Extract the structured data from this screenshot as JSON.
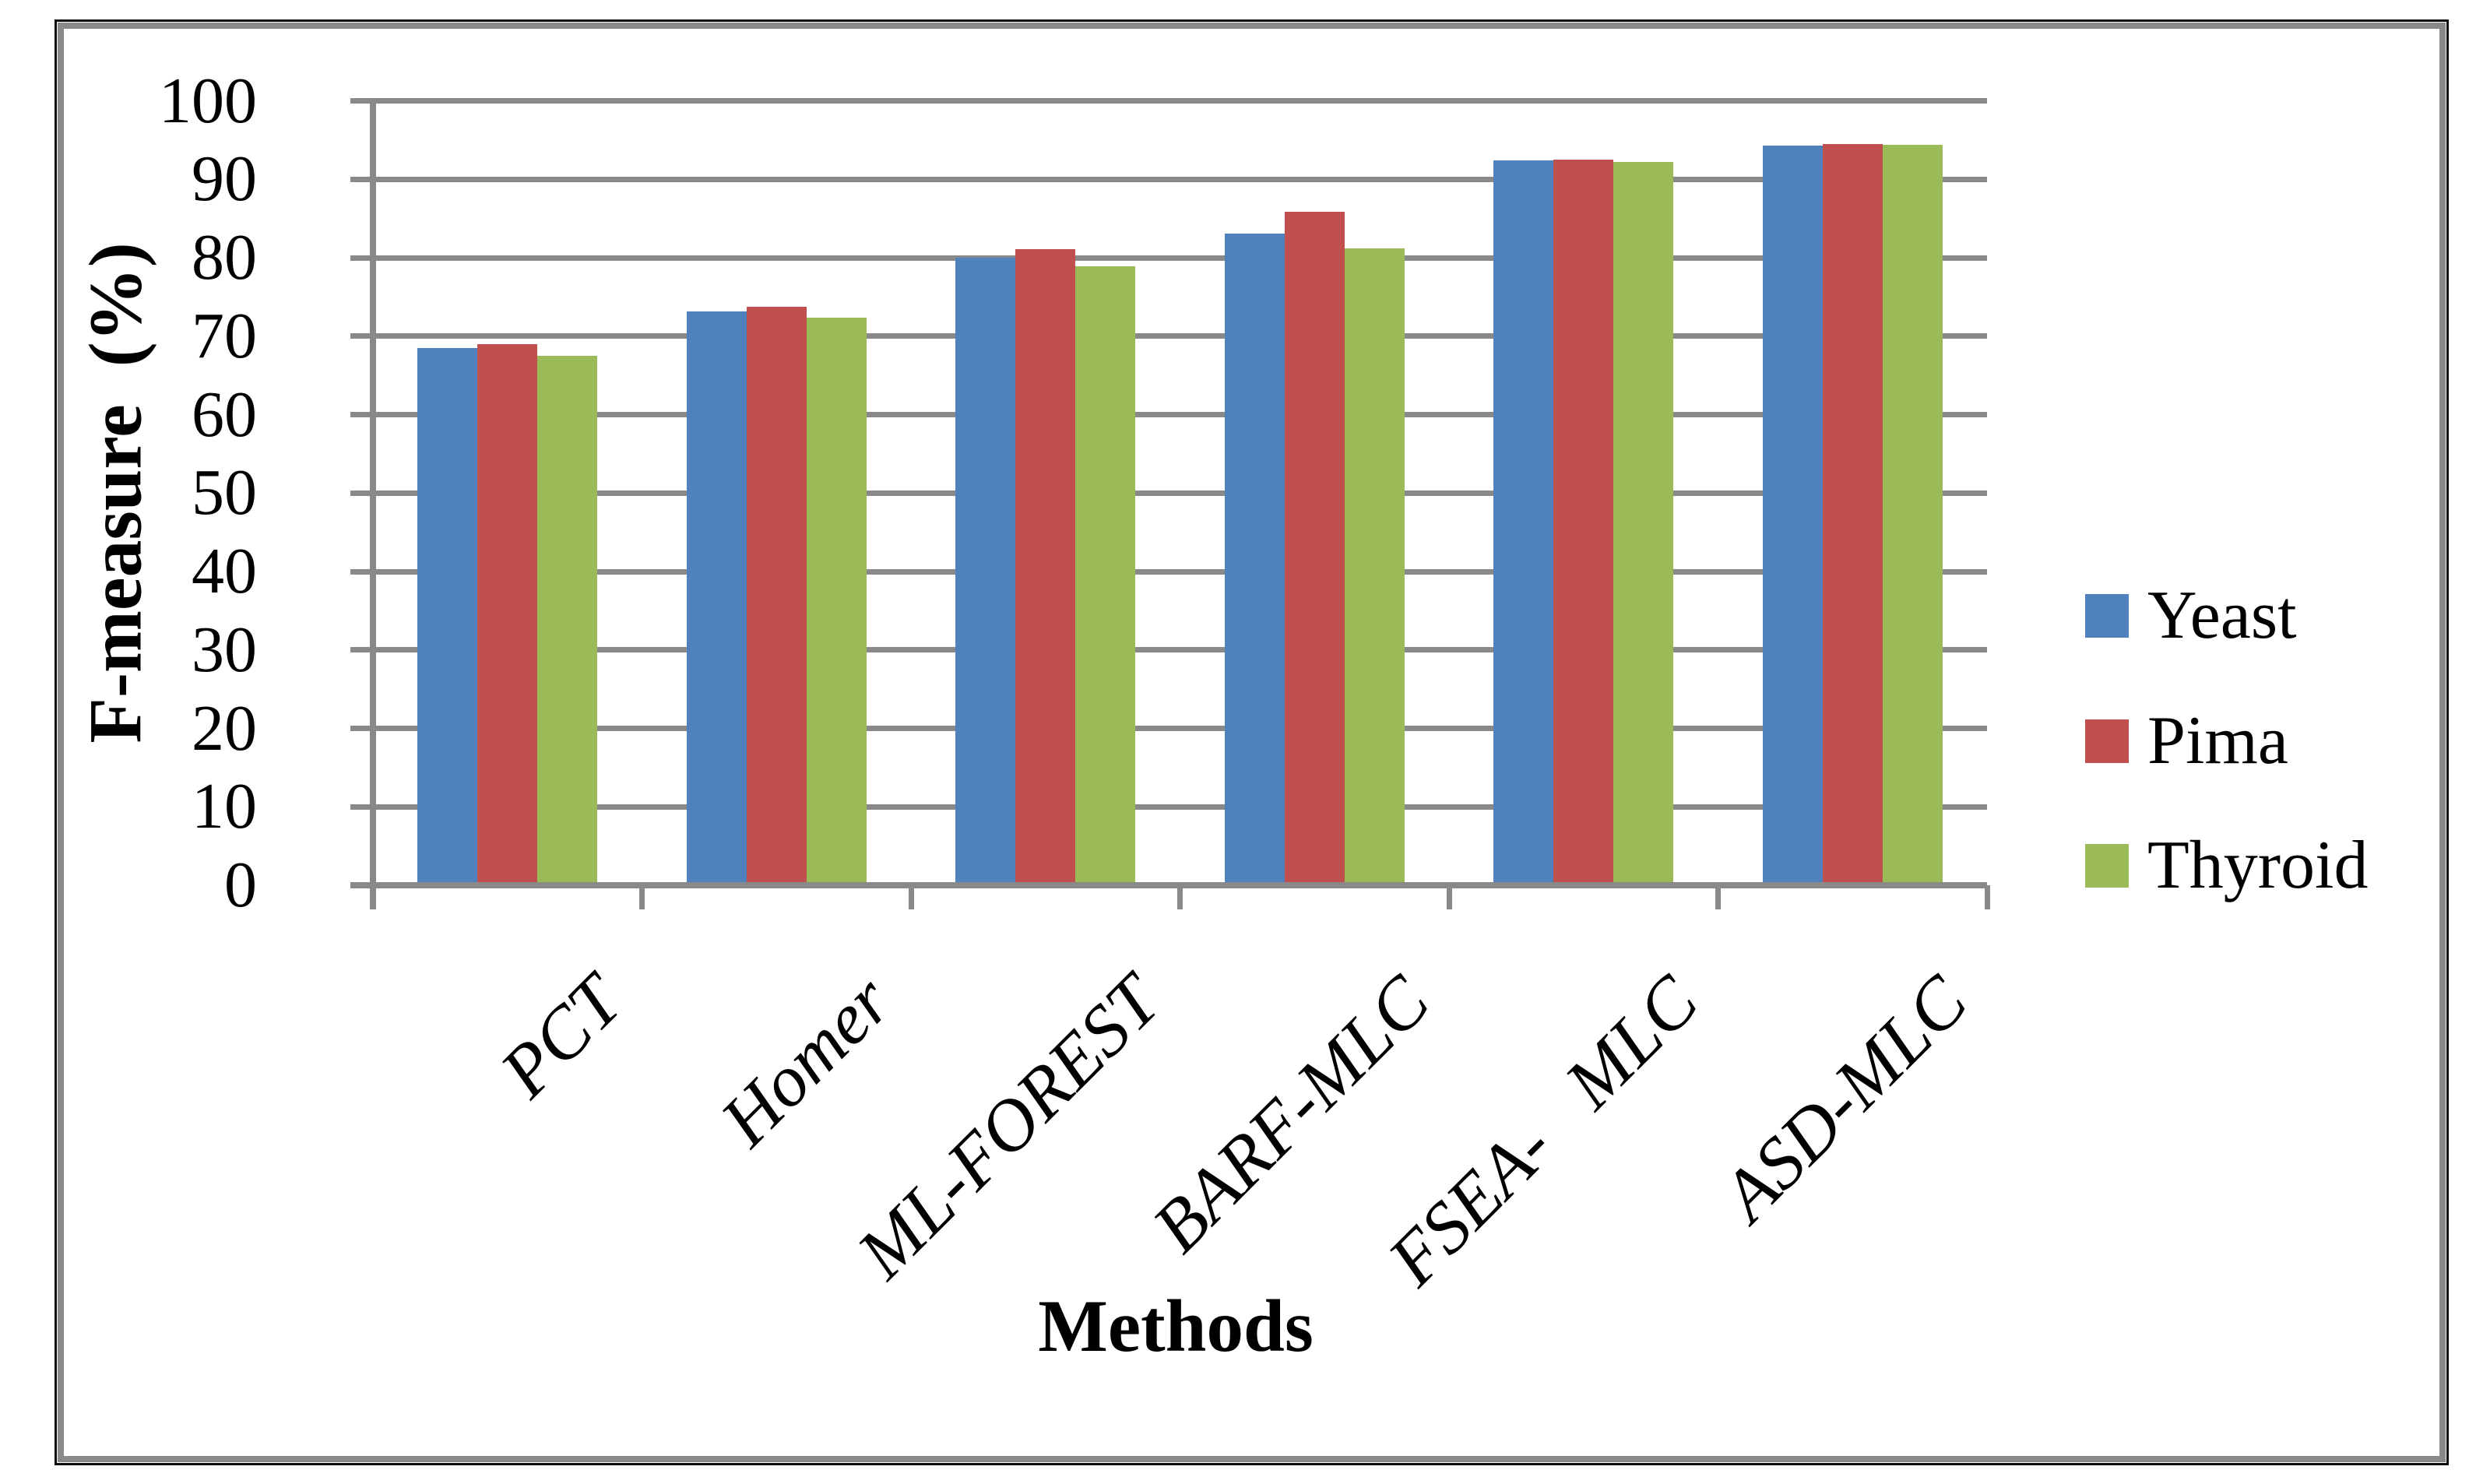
{
  "chart_data": {
    "type": "bar",
    "title": "",
    "categories": [
      "PCT",
      "Homer",
      "ML-FOREST",
      "BARF-MLC",
      "FSEA-   MLC",
      "ASD-MLC"
    ],
    "series": [
      {
        "name": "Yeast",
        "color": "#4F81BD",
        "values": [
          68.5,
          73.2,
          80.0,
          83.1,
          92.4,
          94.3
        ]
      },
      {
        "name": "Pima",
        "color": "#C0504D",
        "values": [
          69.0,
          73.7,
          81.1,
          85.9,
          92.5,
          94.5
        ]
      },
      {
        "name": "Thyroid",
        "color": "#9BBB59",
        "values": [
          67.5,
          72.4,
          78.9,
          81.2,
          92.2,
          94.4
        ]
      }
    ],
    "xlabel": "Methods",
    "ylabel": "F-measure  (%)",
    "ylim": [
      0,
      100
    ],
    "yticks": [
      0,
      10,
      20,
      30,
      40,
      50,
      60,
      70,
      80,
      90,
      100
    ],
    "grid": "horizontal",
    "gridline_color": "#898989",
    "axis_color": "#898989",
    "legend_position": "right"
  }
}
